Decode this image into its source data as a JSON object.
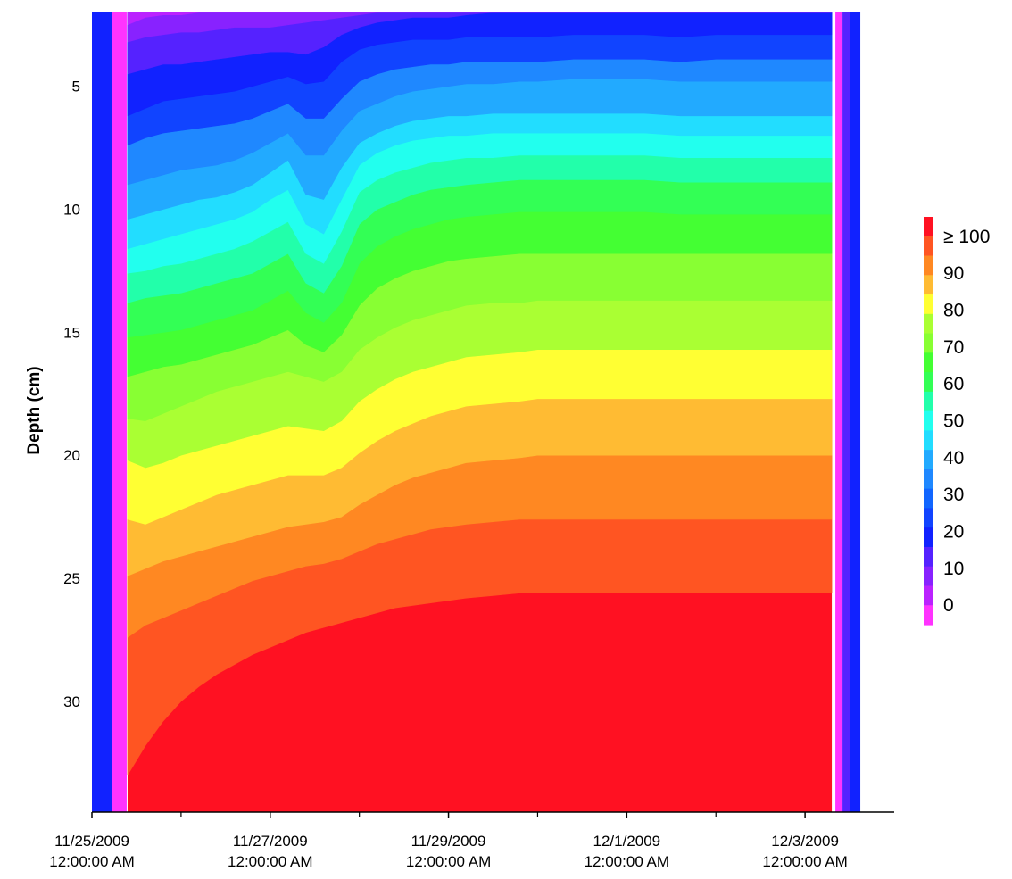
{
  "chart_data": {
    "type": "heatmap",
    "title": "",
    "xlabel": "",
    "ylabel": "Depth (cm)",
    "y_axis_inverted": true,
    "ylim": [
      2.0,
      34.5
    ],
    "y_ticks": [
      5,
      10,
      15,
      20,
      25,
      30
    ],
    "y_tick_labels": [
      "5",
      "10",
      "15",
      "20",
      "25",
      "30"
    ],
    "xlim": [
      "2009-11-25T00:00",
      "2009-12-04T00:00"
    ],
    "x_major_ticks": [
      "2009-11-25T00:00",
      "2009-11-27T00:00",
      "2009-11-29T00:00",
      "2009-12-01T00:00",
      "2009-12-03T00:00"
    ],
    "x_minor_ticks": [
      "2009-11-26T00:00",
      "2009-11-28T00:00",
      "2009-11-30T00:00",
      "2009-12-02T00:00"
    ],
    "x_tick_labels": [
      [
        "11/25/2009",
        "12:00:00 AM"
      ],
      [
        "11/27/2009",
        "12:00:00 AM"
      ],
      [
        "11/29/2009",
        "12:00:00 AM"
      ],
      [
        "12/1/2009",
        "12:00:00 AM"
      ],
      [
        "12/3/2009",
        "12:00:00 AM"
      ]
    ],
    "legend": {
      "placement": "right",
      "labels": [
        "≥ 100",
        "90",
        "80",
        "70",
        "60",
        "50",
        "40",
        "30",
        "20",
        "10",
        "0"
      ],
      "levels": [
        0,
        5,
        10,
        15,
        20,
        25,
        30,
        35,
        40,
        45,
        50,
        55,
        60,
        65,
        70,
        75,
        80,
        85,
        90,
        95,
        100
      ],
      "colors": [
        "#ff33ff",
        "#bb22ff",
        "#8822ff",
        "#5522ff",
        "#1122ff",
        "#1144ff",
        "#1166ff",
        "#1f88ff",
        "#22aaff",
        "#22ddff",
        "#22ffee",
        "#22ffaa",
        "#33ff55",
        "#44ff33",
        "#88ff33",
        "#aaff33",
        "#ffff33",
        "#ffbb33",
        "#ff8822",
        "#ff5522",
        "#ff1122"
      ]
    },
    "contour_day_values": [
      0.4,
      0.6,
      0.8,
      1.0,
      1.2,
      1.4,
      1.6,
      1.8,
      2.0,
      2.2,
      2.4,
      2.6,
      2.8,
      3.0,
      3.2,
      3.4,
      3.6,
      3.8,
      4.0,
      4.2,
      4.5,
      4.8,
      5.0,
      5.4,
      5.8,
      6.2,
      6.6,
      7.0,
      7.4,
      7.7,
      7.9,
      8.0,
      8.1,
      8.2,
      8.3
    ],
    "contour_depths_cm": [
      [
        2.5,
        2.2,
        2.1,
        2.1,
        2.0,
        2.0,
        2.0,
        2.0,
        2.0,
        2.0,
        2.0,
        2.0,
        2.0,
        2.0,
        2.0,
        2.0,
        2.0,
        2.0,
        2.0,
        2.0,
        2.0,
        2.0,
        2.0,
        2.0,
        2.0,
        2.0,
        2.0,
        2.0,
        2.0,
        2.0,
        2.0,
        2.0,
        2.0,
        2.0,
        2.0
      ],
      [
        3.2,
        3.0,
        2.9,
        2.8,
        2.8,
        2.7,
        2.6,
        2.6,
        2.6,
        2.5,
        2.4,
        2.3,
        2.2,
        2.1,
        2.0,
        2.0,
        2.0,
        2.0,
        2.0,
        2.0,
        2.0,
        2.0,
        2.0,
        2.0,
        2.0,
        2.0,
        2.0,
        2.0,
        2.0,
        2.0,
        2.0,
        2.0,
        2.0,
        2.0,
        2.0
      ],
      [
        4.5,
        4.3,
        4.1,
        4.1,
        4.0,
        3.9,
        3.8,
        3.7,
        3.6,
        3.6,
        3.7,
        3.4,
        2.9,
        2.6,
        2.4,
        2.3,
        2.2,
        2.2,
        2.2,
        2.1,
        2.0,
        2.0,
        2.0,
        2.0,
        2.0,
        2.0,
        2.0,
        2.0,
        2.0,
        2.0,
        2.0,
        2.0,
        2.0,
        2.0,
        2.0
      ],
      [
        6.2,
        5.9,
        5.6,
        5.5,
        5.4,
        5.3,
        5.2,
        5.0,
        4.8,
        4.6,
        4.9,
        4.8,
        4.0,
        3.5,
        3.3,
        3.2,
        3.1,
        3.1,
        3.1,
        3.0,
        3.0,
        3.0,
        3.0,
        2.9,
        2.9,
        2.9,
        3.0,
        2.9,
        2.9,
        2.9,
        2.9,
        2.9,
        2.9,
        2.9,
        2.9
      ],
      [
        7.4,
        7.1,
        6.9,
        6.8,
        6.7,
        6.6,
        6.5,
        6.3,
        6.0,
        5.7,
        6.3,
        6.3,
        5.5,
        4.8,
        4.5,
        4.3,
        4.2,
        4.1,
        4.1,
        4.0,
        4.0,
        4.0,
        4.0,
        3.9,
        3.9,
        3.9,
        4.0,
        3.9,
        3.9,
        3.9,
        3.9,
        3.9,
        3.9,
        3.9,
        3.9
      ],
      [
        9.0,
        8.8,
        8.6,
        8.4,
        8.3,
        8.2,
        8.0,
        7.7,
        7.3,
        6.9,
        7.8,
        7.8,
        6.8,
        6.0,
        5.7,
        5.4,
        5.2,
        5.1,
        5.0,
        4.9,
        4.9,
        4.8,
        4.8,
        4.7,
        4.7,
        4.7,
        4.8,
        4.8,
        4.8,
        4.8,
        4.8,
        4.8,
        4.8,
        4.8,
        4.8
      ],
      [
        10.4,
        10.2,
        10.0,
        9.8,
        9.6,
        9.5,
        9.3,
        9.0,
        8.5,
        8.0,
        9.4,
        9.6,
        8.3,
        7.3,
        6.9,
        6.6,
        6.4,
        6.3,
        6.2,
        6.2,
        6.1,
        6.1,
        6.1,
        6.1,
        6.1,
        6.1,
        6.2,
        6.2,
        6.2,
        6.2,
        6.2,
        6.2,
        6.2,
        6.2,
        6.2
      ],
      [
        11.6,
        11.4,
        11.2,
        11.0,
        10.8,
        10.6,
        10.4,
        10.1,
        9.6,
        9.2,
        10.6,
        11.0,
        9.6,
        8.2,
        7.7,
        7.4,
        7.2,
        7.1,
        7.0,
        7.0,
        6.9,
        6.9,
        6.9,
        6.9,
        6.9,
        6.9,
        7.0,
        7.0,
        7.0,
        7.0,
        7.0,
        7.0,
        7.0,
        7.0,
        7.0
      ],
      [
        12.6,
        12.5,
        12.3,
        12.2,
        12.0,
        11.8,
        11.6,
        11.3,
        10.9,
        10.5,
        11.8,
        12.2,
        10.9,
        9.3,
        8.8,
        8.5,
        8.3,
        8.1,
        8.0,
        7.9,
        7.9,
        7.8,
        7.8,
        7.8,
        7.8,
        7.8,
        7.9,
        7.9,
        7.9,
        7.9,
        7.9,
        7.9,
        7.9,
        7.9,
        7.9
      ],
      [
        13.8,
        13.6,
        13.5,
        13.4,
        13.2,
        13.0,
        12.8,
        12.6,
        12.2,
        11.8,
        13.0,
        13.4,
        12.3,
        10.6,
        10.0,
        9.7,
        9.4,
        9.2,
        9.1,
        9.0,
        8.9,
        8.8,
        8.8,
        8.8,
        8.8,
        8.8,
        8.9,
        8.9,
        8.9,
        8.9,
        8.9,
        8.9,
        8.9,
        8.9,
        8.9
      ],
      [
        15.2,
        15.1,
        15.0,
        14.9,
        14.7,
        14.5,
        14.3,
        14.1,
        13.7,
        13.3,
        14.2,
        14.6,
        13.8,
        12.2,
        11.5,
        11.1,
        10.8,
        10.6,
        10.4,
        10.3,
        10.2,
        10.1,
        10.1,
        10.1,
        10.1,
        10.1,
        10.2,
        10.2,
        10.2,
        10.2,
        10.2,
        10.2,
        10.2,
        10.2,
        10.2
      ],
      [
        16.8,
        16.6,
        16.4,
        16.3,
        16.1,
        15.9,
        15.7,
        15.5,
        15.2,
        14.9,
        15.5,
        15.8,
        15.1,
        13.9,
        13.2,
        12.8,
        12.5,
        12.3,
        12.1,
        12.0,
        11.9,
        11.8,
        11.8,
        11.8,
        11.8,
        11.8,
        11.8,
        11.8,
        11.8,
        11.8,
        11.8,
        11.8,
        11.8,
        11.8,
        11.8
      ],
      [
        18.5,
        18.6,
        18.3,
        18.0,
        17.7,
        17.4,
        17.2,
        17.0,
        16.8,
        16.6,
        16.8,
        17.0,
        16.6,
        15.7,
        15.2,
        14.8,
        14.5,
        14.3,
        14.1,
        13.9,
        13.8,
        13.8,
        13.7,
        13.7,
        13.7,
        13.7,
        13.7,
        13.7,
        13.7,
        13.7,
        13.7,
        13.7,
        13.7,
        13.7,
        13.7
      ],
      [
        20.2,
        20.5,
        20.3,
        20.0,
        19.8,
        19.6,
        19.4,
        19.2,
        19.0,
        18.8,
        18.9,
        19.0,
        18.6,
        17.8,
        17.3,
        16.9,
        16.6,
        16.4,
        16.2,
        16.0,
        15.9,
        15.8,
        15.7,
        15.7,
        15.7,
        15.7,
        15.7,
        15.7,
        15.7,
        15.7,
        15.7,
        15.7,
        15.7,
        15.7,
        15.7
      ],
      [
        22.6,
        22.8,
        22.5,
        22.2,
        21.9,
        21.6,
        21.4,
        21.2,
        21.0,
        20.8,
        20.8,
        20.8,
        20.5,
        19.9,
        19.4,
        19.0,
        18.7,
        18.4,
        18.2,
        18.0,
        17.9,
        17.8,
        17.7,
        17.7,
        17.7,
        17.7,
        17.7,
        17.7,
        17.7,
        17.7,
        17.7,
        17.7,
        17.7,
        17.7,
        17.7
      ],
      [
        24.9,
        24.6,
        24.3,
        24.1,
        23.9,
        23.7,
        23.5,
        23.3,
        23.1,
        22.9,
        22.8,
        22.7,
        22.5,
        22.0,
        21.6,
        21.2,
        20.9,
        20.7,
        20.5,
        20.3,
        20.2,
        20.1,
        20.0,
        20.0,
        20.0,
        20.0,
        20.0,
        20.0,
        20.0,
        20.0,
        20.0,
        20.0,
        20.0,
        20.0,
        20.0
      ],
      [
        27.4,
        26.9,
        26.6,
        26.3,
        26.0,
        25.7,
        25.4,
        25.1,
        24.9,
        24.7,
        24.5,
        24.4,
        24.2,
        23.9,
        23.6,
        23.4,
        23.2,
        23.0,
        22.9,
        22.8,
        22.7,
        22.6,
        22.6,
        22.6,
        22.6,
        22.6,
        22.6,
        22.6,
        22.6,
        22.6,
        22.6,
        22.6,
        22.6,
        22.6,
        22.6
      ],
      [
        33.0,
        31.8,
        30.8,
        30.0,
        29.4,
        28.9,
        28.5,
        28.1,
        27.8,
        27.5,
        27.2,
        27.0,
        26.8,
        26.6,
        26.4,
        26.2,
        26.1,
        26.0,
        25.9,
        25.8,
        25.7,
        25.6,
        25.6,
        25.6,
        25.6,
        25.6,
        25.6,
        25.6,
        25.6,
        25.6,
        25.6,
        25.6,
        25.6,
        25.6,
        25.6
      ]
    ],
    "contour_colors_from_top": [
      "#bb22ff",
      "#8822ff",
      "#5522ff",
      "#1122ff",
      "#1144ff",
      "#1f88ff",
      "#22aaff",
      "#22ddff",
      "#22ffee",
      "#22ffaa",
      "#33ff55",
      "#44ff33",
      "#88ff33",
      "#aaff33",
      "#ffff33",
      "#ffbb33",
      "#ff8822",
      "#ff5522",
      "#ff1122"
    ],
    "edge_columns": [
      {
        "from_day": 0.0,
        "to_day": 0.23,
        "color": "#1122ff"
      },
      {
        "from_day": 0.23,
        "to_day": 0.39,
        "color": "#ff33ff"
      },
      {
        "from_day": 8.34,
        "to_day": 8.42,
        "color": "#ff33ff"
      },
      {
        "from_day": 8.42,
        "to_day": 8.5,
        "color": "#5522ff"
      },
      {
        "from_day": 8.5,
        "to_day": 8.62,
        "color": "#1122ff"
      }
    ]
  }
}
